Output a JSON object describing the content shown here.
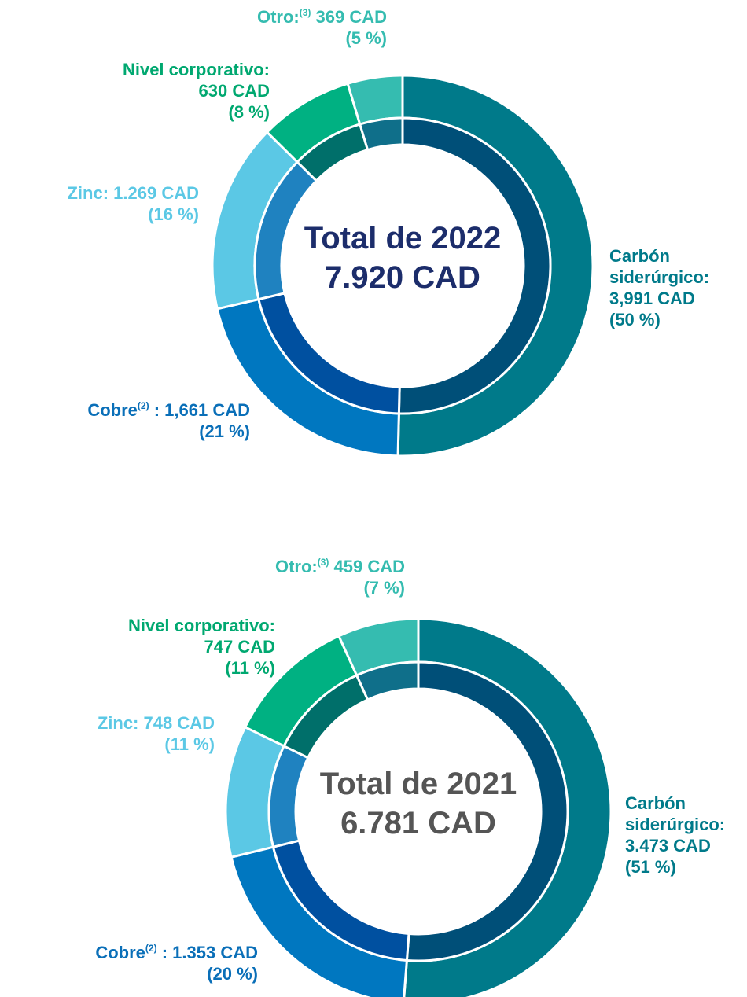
{
  "chart_data": [
    {
      "type": "donut",
      "center_title": "Total de 2022",
      "total_label": "7.920 CAD",
      "center_color": "#1c2d6b",
      "categories": [
        "Carbón siderúrgico:",
        "Cobre",
        "Zinc:",
        "Nivel corporativo:",
        "Otro:"
      ],
      "category_notes": [
        null,
        "(2)",
        null,
        null,
        "(3)"
      ],
      "values": [
        3991,
        1661,
        1269,
        630,
        369
      ],
      "value_labels": [
        "3,991 CAD",
        ": 1,661 CAD",
        "1.269 CAD",
        "630 CAD",
        "369 CAD"
      ],
      "percent_labels": [
        "(50 %)",
        "(21 %)",
        "(16 %)",
        "(8 %)",
        "(5 %)"
      ],
      "colors": [
        "#007a8a",
        "#0077c0",
        "#5bc8e5",
        "#00b182",
        "#35bcb0"
      ],
      "inner_colors": [
        "#004f78",
        "#0050a0",
        "#1f82c0",
        "#006f6a",
        "#0f6f8a"
      ],
      "label_colors": [
        "#007a8a",
        "#0a6fb8",
        "#5bc8e5",
        "#00a870",
        "#35bcb0"
      ]
    },
    {
      "type": "donut",
      "center_title": "Total de 2021",
      "total_label": "6.781 CAD",
      "center_color": "#555555",
      "categories": [
        "Carbón siderúrgico:",
        "Cobre",
        "Zinc:",
        "Nivel corporativo:",
        "Otro:"
      ],
      "category_notes": [
        null,
        "(2)",
        null,
        null,
        "(3)"
      ],
      "values": [
        3473,
        1353,
        748,
        747,
        459
      ],
      "value_labels": [
        "3.473 CAD",
        ": 1.353 CAD",
        "748 CAD",
        "747 CAD",
        "459 CAD"
      ],
      "percent_labels": [
        "(51 %)",
        "(20 %)",
        "(11 %)",
        "(11 %)",
        "(7 %)"
      ],
      "colors": [
        "#007a8a",
        "#0077c0",
        "#5bc8e5",
        "#00b182",
        "#35bcb0"
      ],
      "inner_colors": [
        "#004f78",
        "#0050a0",
        "#1f82c0",
        "#006f6a",
        "#0f6f8a"
      ],
      "label_colors": [
        "#007a8a",
        "#0a6fb8",
        "#5bc8e5",
        "#00a870",
        "#35bcb0"
      ]
    }
  ]
}
